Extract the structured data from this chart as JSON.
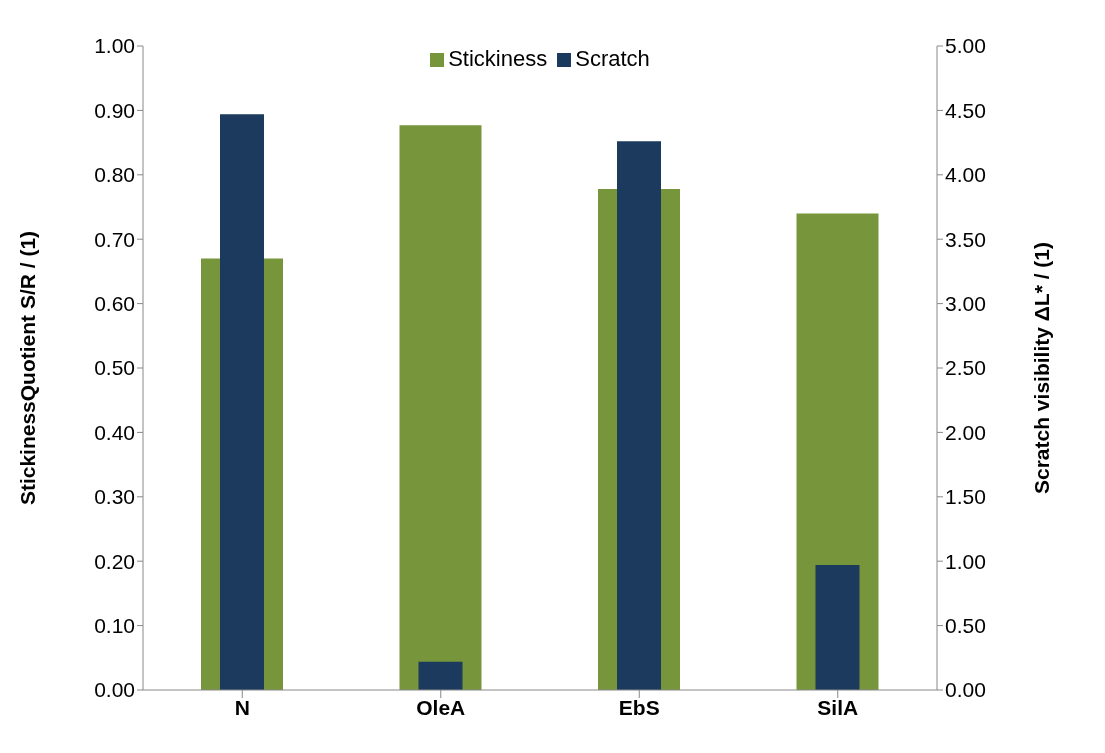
{
  "chart_data": {
    "type": "bar",
    "categories": [
      "N",
      "OleA",
      "EbS",
      "SilA"
    ],
    "series": [
      {
        "name": "Stickiness",
        "color": "#77963c",
        "values": [
          0.67,
          0.877,
          0.778,
          0.74
        ]
      },
      {
        "name": "Scratch",
        "color": "#1b3a5e",
        "values": [
          4.47,
          0.22,
          4.26,
          0.97
        ],
        "axis": "y2"
      }
    ],
    "ylabel": "StickinessQuotient S/R / (1)",
    "y2label": "Scratch visibility ΔL* / (1)",
    "ylim": [
      0,
      1
    ],
    "yticks": [
      {
        "value": 0,
        "label": "0.00"
      },
      {
        "value": 0.1,
        "label": "0.10"
      },
      {
        "value": 0.2,
        "label": "0.20"
      },
      {
        "value": 0.3,
        "label": "0.30"
      },
      {
        "value": 0.4,
        "label": "0.40"
      },
      {
        "value": 0.5,
        "label": "0.50"
      },
      {
        "value": 0.6,
        "label": "0.60"
      },
      {
        "value": 0.7,
        "label": "0.70"
      },
      {
        "value": 0.8,
        "label": "0.80"
      },
      {
        "value": 0.9,
        "label": "0.90"
      },
      {
        "value": 1,
        "label": "1.00"
      }
    ],
    "y2lim": [
      0,
      5
    ],
    "y2ticks": [
      {
        "value": 0,
        "label": "0.00"
      },
      {
        "value": 0.5,
        "label": "0.50"
      },
      {
        "value": 1,
        "label": "1.00"
      },
      {
        "value": 1.5,
        "label": "1.50"
      },
      {
        "value": 2,
        "label": "2.00"
      },
      {
        "value": 2.5,
        "label": "2.50"
      },
      {
        "value": 3,
        "label": "3.00"
      },
      {
        "value": 3.5,
        "label": "3.50"
      },
      {
        "value": 4,
        "label": "4.00"
      },
      {
        "value": 4.5,
        "label": "4.50"
      },
      {
        "value": 5,
        "label": "5.00"
      }
    ],
    "legend": "top",
    "grid": false
  }
}
